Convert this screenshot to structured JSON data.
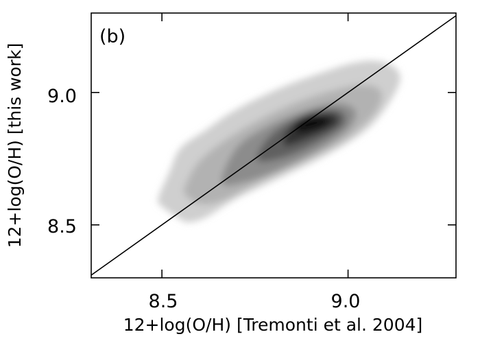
{
  "chart_data": {
    "type": "heatmap",
    "panel_label": "(b)",
    "xlabel": "12+log(O/H) [Tremonti et al. 2004]",
    "ylabel": "12+log(O/H) [this work]",
    "xlim": [
      8.31,
      9.29
    ],
    "ylim": [
      8.3,
      9.3
    ],
    "x_ticks": [
      8.5,
      9.0
    ],
    "x_tick_labels": [
      "8.5",
      "9.0"
    ],
    "y_ticks": [
      8.5,
      9.0
    ],
    "y_tick_labels": [
      "8.5",
      "9.0"
    ],
    "reference_line": {
      "type": "one-to-one",
      "x": [
        8.31,
        9.29
      ],
      "y": [
        8.31,
        9.29
      ]
    },
    "density_center": {
      "x": 8.91,
      "y": 8.9
    },
    "density_contours": [
      {
        "level": 0.08,
        "color": "#cfcfcf",
        "points": [
          [
            8.49,
            8.6
          ],
          [
            8.5,
            8.57
          ],
          [
            8.54,
            8.53
          ],
          [
            8.57,
            8.51
          ],
          [
            8.62,
            8.53
          ],
          [
            8.7,
            8.6
          ],
          [
            8.82,
            8.68
          ],
          [
            8.95,
            8.77
          ],
          [
            9.05,
            8.86
          ],
          [
            9.11,
            8.96
          ],
          [
            9.14,
            9.05
          ],
          [
            9.12,
            9.1
          ],
          [
            9.07,
            9.12
          ],
          [
            9.01,
            9.11
          ],
          [
            8.94,
            9.08
          ],
          [
            8.84,
            9.03
          ],
          [
            8.76,
            8.98
          ],
          [
            8.68,
            8.92
          ],
          [
            8.62,
            8.86
          ],
          [
            8.55,
            8.79
          ],
          [
            8.52,
            8.7
          ]
        ]
      },
      {
        "level": 0.25,
        "color": "#b2b2b2",
        "points": [
          [
            8.56,
            8.62
          ],
          [
            8.6,
            8.58
          ],
          [
            8.66,
            8.59
          ],
          [
            8.76,
            8.66
          ],
          [
            8.88,
            8.74
          ],
          [
            8.99,
            8.82
          ],
          [
            9.07,
            8.92
          ],
          [
            9.09,
            9.0
          ],
          [
            9.04,
            9.03
          ],
          [
            8.94,
            9.0
          ],
          [
            8.84,
            8.95
          ],
          [
            8.74,
            8.88
          ],
          [
            8.66,
            8.81
          ],
          [
            8.6,
            8.74
          ],
          [
            8.57,
            8.67
          ]
        ]
      },
      {
        "level": 0.45,
        "color": "#8c8c8c",
        "points": [
          [
            8.66,
            8.66
          ],
          [
            8.72,
            8.66
          ],
          [
            8.82,
            8.71
          ],
          [
            8.92,
            8.78
          ],
          [
            9.0,
            8.86
          ],
          [
            9.02,
            8.93
          ],
          [
            8.97,
            8.96
          ],
          [
            8.88,
            8.93
          ],
          [
            8.78,
            8.87
          ],
          [
            8.7,
            8.79
          ]
        ]
      },
      {
        "level": 0.65,
        "color": "#606060",
        "points": [
          [
            8.76,
            8.74
          ],
          [
            8.84,
            8.76
          ],
          [
            8.93,
            8.82
          ],
          [
            8.99,
            8.88
          ],
          [
            8.98,
            8.93
          ],
          [
            8.91,
            8.93
          ],
          [
            8.82,
            8.87
          ],
          [
            8.77,
            8.8
          ]
        ]
      },
      {
        "level": 0.85,
        "color": "#333333",
        "points": [
          [
            8.83,
            8.8
          ],
          [
            8.9,
            8.83
          ],
          [
            8.97,
            8.88
          ],
          [
            8.96,
            8.92
          ],
          [
            8.89,
            8.91
          ],
          [
            8.84,
            8.86
          ]
        ]
      },
      {
        "level": 1.0,
        "color": "#111111",
        "points": [
          [
            8.87,
            8.85
          ],
          [
            8.93,
            8.87
          ],
          [
            8.95,
            8.9
          ],
          [
            8.9,
            8.91
          ],
          [
            8.86,
            8.88
          ]
        ]
      }
    ]
  }
}
